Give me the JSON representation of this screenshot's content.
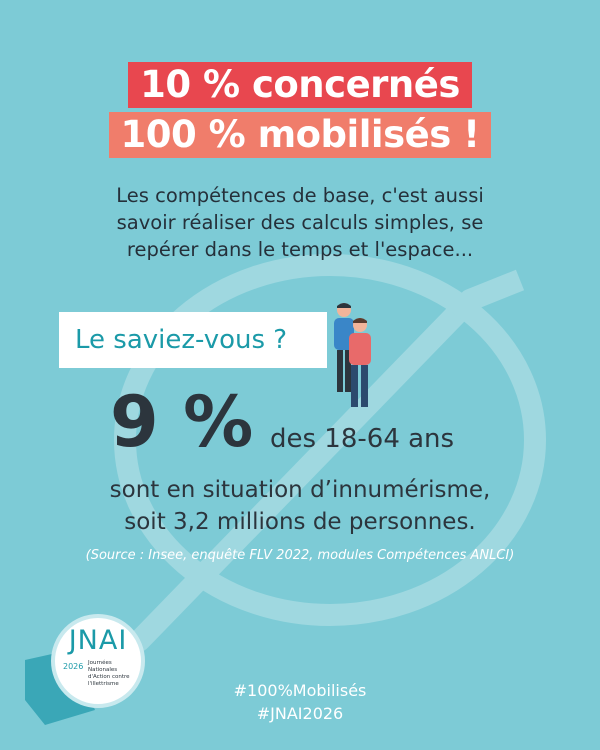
{
  "headline": {
    "line1": "10 % concernés",
    "line2": "100 % mobilisés !"
  },
  "intro": {
    "line1": "Les compétences de base, c'est aussi",
    "line2": "savoir réaliser des calculs simples, se",
    "line3": "repérer dans le temps et l'espace..."
  },
  "callout": {
    "label": "Le saviez-vous ?"
  },
  "stat": {
    "value": "9 %",
    "suffix": "des 18-64 ans",
    "line1": "sont en situation d’innumérisme,",
    "line2": "soit 3,2 millions de personnes."
  },
  "source": "(Source : Insee, enquête FLV 2022, modules Compétences ANLCI)",
  "logo": {
    "title": "JNAI",
    "year": "2026",
    "subtitle_1": "Journées",
    "subtitle_2": "Nationales",
    "subtitle_3": "d'Action contre",
    "subtitle_4": "l'illettrisme"
  },
  "hashtags": {
    "tag1": "#100%Mobilisés",
    "tag2": "#JNAI2026"
  },
  "colors": {
    "background": "#7dcbd6",
    "headline1_bg": "#e8474f",
    "headline2_bg": "#f07d6b",
    "accent_teal": "#1b9aa8",
    "text_dark": "#2c353d"
  }
}
